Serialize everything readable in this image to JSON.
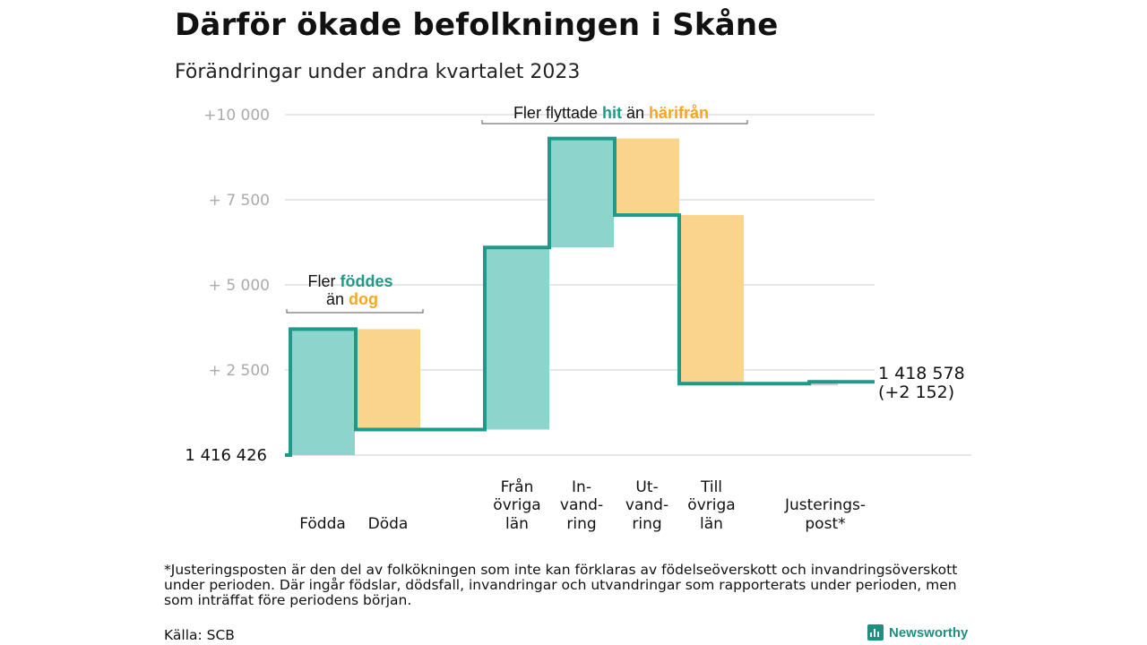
{
  "header": {
    "title": "Därför ökade befolkningen i Skåne",
    "subtitle": "Förändringar under andra kvartalet 2023"
  },
  "colors": {
    "increase_fill": "#8dd5cc",
    "decrease_fill": "#fad48c",
    "step_line": "#1f9a8a",
    "adjustment_fill": "#d0d0d0",
    "grid": "#dddddd",
    "teal_text": "#1f9a8a",
    "orange_text": "#f5a623",
    "tick_text": "#aaaaaa"
  },
  "chart_data": {
    "type": "waterfall",
    "start_value": 1416426,
    "start_label": "1  416   426",
    "y_ticks": [
      {
        "value": 2500,
        "label": "+  2  500"
      },
      {
        "value": 5000,
        "label": "+  5  000"
      },
      {
        "value": 7500,
        "label": "+  7  500"
      },
      {
        "value": 10000,
        "label": "+10    000"
      }
    ],
    "ylim": [
      0,
      10000
    ],
    "steps": [
      {
        "label": [
          "",
          "",
          "Födda"
        ],
        "kind": "increase",
        "from": 0,
        "to": 3700
      },
      {
        "label": [
          "",
          "",
          "Döda"
        ],
        "kind": "decrease",
        "from": 3700,
        "to": 750
      },
      {
        "label": [
          "Från",
          "övriga",
          "län"
        ],
        "kind": "increase",
        "from": 750,
        "to": 6100
      },
      {
        "label": [
          "In-",
          "vand-",
          "ring"
        ],
        "kind": "increase",
        "from": 6100,
        "to": 9300
      },
      {
        "label": [
          "Ut-",
          "vand-",
          "ring"
        ],
        "kind": "decrease",
        "from": 9300,
        "to": 7050
      },
      {
        "label": [
          "Till",
          "övriga",
          "län"
        ],
        "kind": "decrease",
        "from": 7050,
        "to": 2100
      },
      {
        "label": [
          "",
          "Justerings-",
          "post*"
        ],
        "kind": "adjustment",
        "from": 2100,
        "to": 2152
      }
    ],
    "end_value_label": "1 418 578",
    "end_change_label": "(+2 152)",
    "annotations": [
      {
        "id": "natural",
        "parts": [
          {
            "text": "Fler ",
            "style": "plain"
          },
          {
            "text": "föddes",
            "style": "teal"
          },
          {
            "text": "än ",
            "style": "plain"
          },
          {
            "text": "dog",
            "style": "orange"
          }
        ]
      },
      {
        "id": "migration",
        "parts": [
          {
            "text": "Fler flyttade ",
            "style": "plain"
          },
          {
            "text": "hit",
            "style": "teal"
          },
          {
            "text": " än ",
            "style": "plain"
          },
          {
            "text": "härifrån",
            "style": "orange"
          }
        ]
      }
    ]
  },
  "footnote": "*Justeringsposten är den del av folkökningen som inte kan förklaras av födelseöverskott och invandringsöverskott under perioden. Där ingår födslar, dödsfall, invandringar och utvandringar som rapporterats under perioden, men som inträffat före periodens början.",
  "source": "Källa: SCB",
  "logo": {
    "text": "Newsworthy",
    "icon": "bar-chart-icon"
  }
}
